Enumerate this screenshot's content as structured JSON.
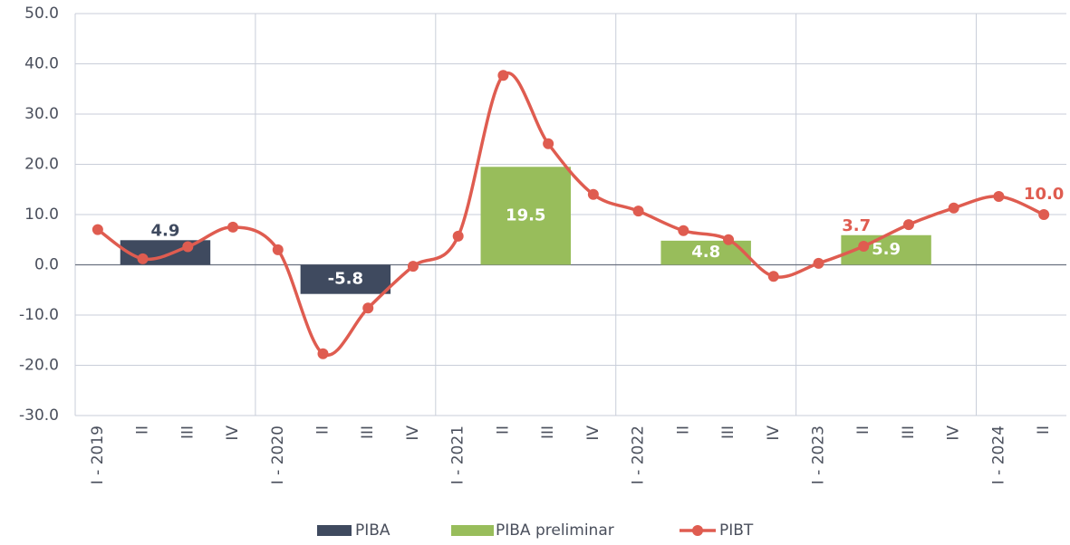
{
  "chart_data": {
    "type": "bar_line",
    "categories": [
      "I - 2019",
      "II",
      "III",
      "IV",
      "I - 2020",
      "II",
      "III",
      "IV",
      "I - 2021",
      "II",
      "III",
      "IV",
      "I - 2022",
      "II",
      "III",
      "IV",
      "I - 2023",
      "II",
      "III",
      "IV",
      "I - 2024",
      "II"
    ],
    "series": [
      {
        "name": "PIBA",
        "type": "bar",
        "color": "#3f4a5f",
        "values": [
          null,
          4.9,
          null,
          null,
          null,
          -5.8,
          null,
          null,
          null,
          null,
          null,
          null,
          null,
          null,
          null,
          null,
          null,
          null,
          null,
          null,
          null,
          null
        ]
      },
      {
        "name": "PIBA preliminar",
        "type": "bar",
        "color": "#98bd5b",
        "values": [
          null,
          null,
          null,
          null,
          null,
          null,
          null,
          null,
          null,
          19.5,
          null,
          null,
          null,
          4.8,
          null,
          null,
          null,
          5.9,
          null,
          null,
          null,
          null
        ]
      },
      {
        "name": "PIBT",
        "type": "line",
        "color": "#df5c50",
        "values": [
          7.0,
          1.2,
          3.6,
          7.5,
          3.0,
          -17.7,
          -8.6,
          -0.3,
          5.7,
          37.7,
          24.1,
          14.0,
          10.7,
          6.8,
          5.0,
          -2.3,
          0.3,
          3.7,
          8.0,
          11.3,
          13.6,
          10.0
        ],
        "value_labels": [
          null,
          null,
          null,
          null,
          null,
          null,
          null,
          null,
          null,
          null,
          null,
          null,
          null,
          null,
          null,
          null,
          null,
          "3.7",
          null,
          null,
          null,
          "10.0"
        ]
      }
    ],
    "ylim": [
      -30,
      50
    ],
    "yticks": [
      {
        "value": -30,
        "label": "-30.0"
      },
      {
        "value": -20,
        "label": "-20.0"
      },
      {
        "value": -10,
        "label": "-10.0"
      },
      {
        "value": 0,
        "label": "0.0"
      },
      {
        "value": 10,
        "label": "10.0"
      },
      {
        "value": 20,
        "label": "20.0"
      },
      {
        "value": 30,
        "label": "30.0"
      },
      {
        "value": 40,
        "label": "40.0"
      },
      {
        "value": 50,
        "label": "50.0"
      }
    ],
    "grid": true,
    "legend": "bottom"
  }
}
